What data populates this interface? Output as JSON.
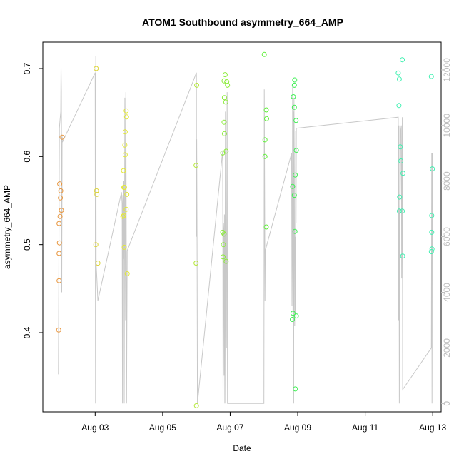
{
  "chart_data": {
    "type": "scatter",
    "title": "ATOM1 Southbound asymmetry_664_AMP",
    "xlabel": "Date",
    "ylabel": "asymmetry_664_AMP",
    "xlim": [
      1.45,
      13.25
    ],
    "ylim": [
      0.31,
      0.73
    ],
    "y2lim": [
      -300,
      13000
    ],
    "x_ticks": [
      {
        "value": 3,
        "label": "Aug 03"
      },
      {
        "value": 5,
        "label": "Aug 05"
      },
      {
        "value": 7,
        "label": "Aug 07"
      },
      {
        "value": 9,
        "label": "Aug 09"
      },
      {
        "value": 11,
        "label": "Aug 11"
      },
      {
        "value": 13,
        "label": "Aug 13"
      }
    ],
    "y_ticks": [
      {
        "value": 0.4,
        "label": "0.4"
      },
      {
        "value": 0.5,
        "label": "0.5"
      },
      {
        "value": 0.6,
        "label": "0.6"
      },
      {
        "value": 0.7,
        "label": "0.7"
      }
    ],
    "y2_ticks": [
      {
        "value": 0,
        "label": "0"
      },
      {
        "value": 2000,
        "label": "2000"
      },
      {
        "value": 4000,
        "label": "4000"
      },
      {
        "value": 6000,
        "label": "6000"
      },
      {
        "value": 8000,
        "label": "8000"
      },
      {
        "value": 10000,
        "label": "10000"
      },
      {
        "value": 12000,
        "label": "12000"
      }
    ],
    "grid": false,
    "legend": "none",
    "line_color": "#c8c8c8",
    "series": [
      {
        "color": "#e8953c",
        "points": [
          [
            1.92,
            0.403
          ],
          [
            1.93,
            0.459
          ],
          [
            1.93,
            0.49
          ],
          [
            1.94,
            0.502
          ],
          [
            1.93,
            0.524
          ],
          [
            1.96,
            0.532
          ],
          [
            2.0,
            0.539
          ],
          [
            1.97,
            0.553
          ],
          [
            1.98,
            0.561
          ],
          [
            1.95,
            0.569
          ],
          [
            2.02,
            0.622
          ]
        ]
      },
      {
        "color": "#ddd53a",
        "points": [
          [
            3.03,
            0.7
          ],
          [
            3.02,
            0.5
          ],
          [
            3.05,
            0.557
          ],
          [
            3.04,
            0.561
          ],
          [
            3.08,
            0.479
          ]
        ]
      },
      {
        "color": "#e3e838",
        "points": [
          [
            3.82,
            0.532
          ],
          [
            3.85,
            0.533
          ],
          [
            3.86,
            0.497
          ],
          [
            3.84,
            0.584
          ],
          [
            3.85,
            0.565
          ],
          [
            3.87,
            0.565
          ],
          [
            3.89,
            0.602
          ],
          [
            3.88,
            0.613
          ],
          [
            3.89,
            0.628
          ],
          [
            3.92,
            0.652
          ],
          [
            3.92,
            0.54
          ],
          [
            3.95,
            0.467
          ],
          [
            3.93,
            0.645
          ],
          [
            3.94,
            0.557
          ]
        ]
      },
      {
        "color": "#b6e83c",
        "points": [
          [
            6.0,
            0.317
          ],
          [
            5.99,
            0.479
          ],
          [
            5.99,
            0.59
          ],
          [
            6.01,
            0.681
          ]
        ]
      },
      {
        "color": "#8cec3c",
        "points": [
          [
            6.78,
            0.604
          ],
          [
            6.78,
            0.514
          ],
          [
            6.79,
            0.486
          ],
          [
            6.8,
            0.5
          ],
          [
            6.82,
            0.512
          ],
          [
            6.82,
            0.639
          ],
          [
            6.83,
            0.626
          ],
          [
            6.83,
            0.667
          ],
          [
            6.82,
            0.686
          ],
          [
            6.85,
            0.693
          ],
          [
            6.87,
            0.662
          ],
          [
            6.88,
            0.606
          ],
          [
            6.88,
            0.481
          ],
          [
            6.9,
            0.685
          ],
          [
            6.92,
            0.681
          ]
        ]
      },
      {
        "color": "#5ef038",
        "points": [
          [
            8.01,
            0.716
          ],
          [
            8.03,
            0.619
          ],
          [
            8.03,
            0.6
          ],
          [
            8.07,
            0.653
          ],
          [
            8.08,
            0.643
          ],
          [
            8.07,
            0.52
          ]
        ]
      },
      {
        "color": "#3ef053",
        "points": [
          [
            8.85,
            0.566
          ],
          [
            8.86,
            0.422
          ],
          [
            8.84,
            0.415
          ],
          [
            8.87,
            0.668
          ],
          [
            8.9,
            0.656
          ],
          [
            8.9,
            0.681
          ],
          [
            8.91,
            0.687
          ],
          [
            8.9,
            0.556
          ],
          [
            8.92,
            0.515
          ],
          [
            8.93,
            0.579
          ],
          [
            8.95,
            0.641
          ],
          [
            8.96,
            0.607
          ],
          [
            8.96,
            0.419
          ],
          [
            8.93,
            0.336
          ]
        ]
      },
      {
        "color": "#3ef0b0",
        "points": [
          [
            11.98,
            0.695
          ],
          [
            12.0,
            0.658
          ],
          [
            12.01,
            0.688
          ],
          [
            12.02,
            0.554
          ],
          [
            12.01,
            0.538
          ],
          [
            12.04,
            0.611
          ],
          [
            12.06,
            0.595
          ],
          [
            12.1,
            0.538
          ],
          [
            12.1,
            0.71
          ],
          [
            12.11,
            0.487
          ],
          [
            12.12,
            0.581
          ],
          [
            12.96,
            0.691
          ],
          [
            12.97,
            0.533
          ],
          [
            12.97,
            0.514
          ],
          [
            12.96,
            0.492
          ],
          [
            12.98,
            0.495
          ],
          [
            12.99,
            0.586
          ]
        ]
      }
    ],
    "line": [
      [
        1.91,
        1050
      ],
      [
        1.92,
        3500
      ],
      [
        1.93,
        6800
      ],
      [
        1.94,
        9900
      ],
      [
        1.96,
        10200
      ],
      [
        1.98,
        10500
      ],
      [
        1.99,
        12100
      ],
      [
        2.0,
        11200
      ],
      [
        2.01,
        4000
      ],
      [
        2.02,
        9600
      ],
      [
        2.03,
        9400
      ],
      [
        3.0,
        11900
      ],
      [
        3.01,
        0
      ],
      [
        3.02,
        12500
      ],
      [
        3.03,
        5000
      ],
      [
        3.05,
        4500
      ],
      [
        3.08,
        3700
      ],
      [
        3.78,
        7600
      ],
      [
        3.8,
        7200
      ],
      [
        3.81,
        0
      ],
      [
        3.82,
        7500
      ],
      [
        3.84,
        5200
      ],
      [
        3.85,
        8000
      ],
      [
        3.86,
        0
      ],
      [
        3.88,
        11000
      ],
      [
        3.89,
        6000
      ],
      [
        3.9,
        3000
      ],
      [
        3.91,
        11200
      ],
      [
        3.92,
        7000
      ],
      [
        3.93,
        0
      ],
      [
        3.94,
        2500
      ],
      [
        3.95,
        5500
      ],
      [
        6.0,
        11900
      ],
      [
        6.0,
        6000
      ],
      [
        6.01,
        9500
      ],
      [
        6.02,
        5700
      ],
      [
        6.03,
        0
      ],
      [
        6.78,
        9100
      ],
      [
        6.79,
        0
      ],
      [
        6.8,
        6500
      ],
      [
        6.81,
        6200
      ],
      [
        6.82,
        1000
      ],
      [
        6.83,
        6800
      ],
      [
        6.84,
        0
      ],
      [
        6.85,
        5000
      ],
      [
        6.86,
        10500
      ],
      [
        6.87,
        0
      ],
      [
        6.88,
        4000
      ],
      [
        6.89,
        2000
      ],
      [
        6.9,
        7000
      ],
      [
        6.91,
        11200
      ],
      [
        6.92,
        0
      ],
      [
        8.0,
        0
      ],
      [
        8.01,
        11300
      ],
      [
        8.02,
        7800
      ],
      [
        8.03,
        3700
      ],
      [
        8.04,
        5500
      ],
      [
        8.82,
        9000
      ],
      [
        8.83,
        3500
      ],
      [
        8.84,
        6200
      ],
      [
        8.85,
        11500
      ],
      [
        8.86,
        3000
      ],
      [
        8.87,
        10500
      ],
      [
        8.88,
        0
      ],
      [
        8.89,
        11000
      ],
      [
        8.9,
        8200
      ],
      [
        8.91,
        2800
      ],
      [
        8.92,
        6000
      ],
      [
        8.93,
        3200
      ],
      [
        8.94,
        9800
      ],
      [
        8.95,
        6500
      ],
      [
        8.96,
        9900
      ],
      [
        11.98,
        10300
      ],
      [
        11.99,
        3000
      ],
      [
        12.0,
        10000
      ],
      [
        12.01,
        0
      ],
      [
        12.02,
        7000
      ],
      [
        12.03,
        6500
      ],
      [
        12.05,
        9800
      ],
      [
        12.07,
        10000
      ],
      [
        12.08,
        4500
      ],
      [
        12.1,
        10300
      ],
      [
        12.11,
        500
      ],
      [
        12.96,
        2000
      ],
      [
        12.97,
        9000
      ],
      [
        12.98,
        0
      ],
      [
        12.99,
        9000
      ]
    ]
  }
}
